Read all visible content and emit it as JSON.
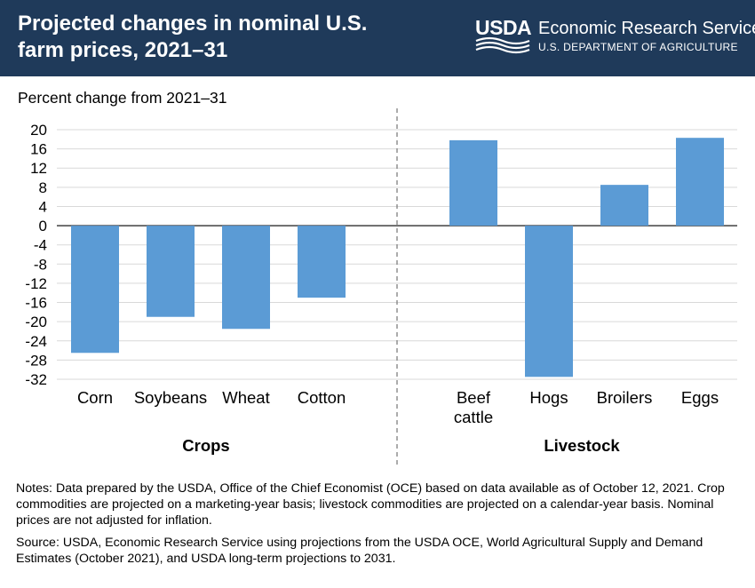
{
  "header": {
    "title": "Projected changes in nominal U.S. farm prices, 2021–31",
    "logo_text": "USDA",
    "agency": "Economic Research Service",
    "department": "U.S. DEPARTMENT OF AGRICULTURE"
  },
  "chart_data": {
    "type": "bar",
    "title": "Projected changes in nominal U.S. farm prices, 2021–31",
    "ylabel": "Percent change from 2021–31",
    "ylim": [
      -32,
      20
    ],
    "yticks": [
      20,
      16,
      12,
      8,
      4,
      0,
      -4,
      -8,
      -12,
      -16,
      -20,
      -24,
      -28,
      -32
    ],
    "grid": true,
    "bar_color": "#5b9bd5",
    "groups": [
      {
        "name": "Crops",
        "categories": [
          "Corn",
          "Soybeans",
          "Wheat",
          "Cotton"
        ],
        "values": [
          -26.5,
          -19,
          -21.5,
          -15
        ]
      },
      {
        "name": "Livestock",
        "categories": [
          [
            "Beef",
            "cattle"
          ],
          [
            "Hogs"
          ],
          [
            "Broilers"
          ],
          [
            "Eggs"
          ]
        ],
        "values": [
          17.8,
          -31.5,
          8.5,
          18.3
        ]
      }
    ]
  },
  "notes": {
    "notes_text": "Notes: Data prepared by the USDA, Office of the Chief Economist (OCE) based on data available as of October 12, 2021. Crop commodities are projected on a marketing-year basis; livestock commodities are projected on a calendar-year basis. Nominal prices are not adjusted for inflation.",
    "source_text": "Source: USDA, Economic Research Service using projections from the USDA OCE, World Agricultural Supply and Demand Estimates (October 2021), and USDA long-term projections to 2031."
  }
}
